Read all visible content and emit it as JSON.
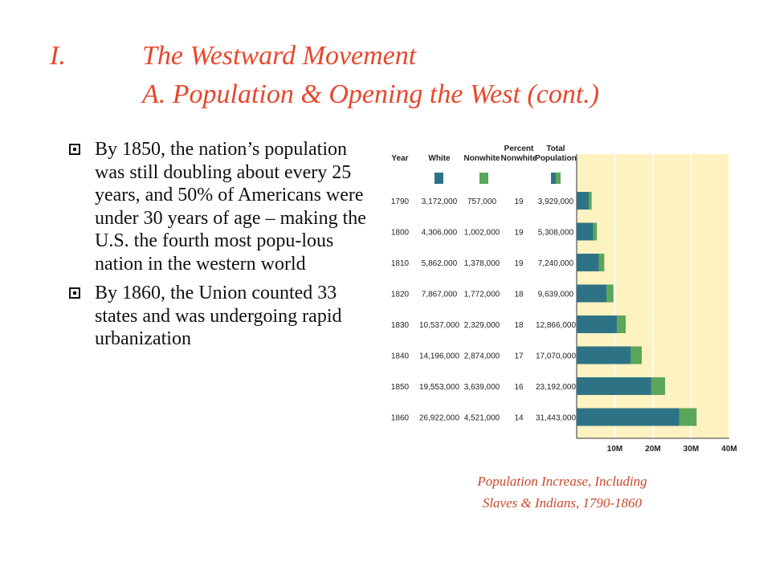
{
  "slide": {
    "title_number": "I.",
    "title_main": "The Westward Movement",
    "title_sub": "A.  Population & Opening the West (cont.)",
    "bullets": [
      "By 1850, the nation’s population was still doubling about every 25 years, and 50% of Americans were under 30 years of age – making the U.S. the fourth most popu-lous nation in the western world",
      "By 1860, the Union counted 33 states and was undergoing rapid urbanization"
    ],
    "caption_line1": "Population Increase, Including",
    "caption_line2": "Slaves & Indians, 1790-1860"
  },
  "chart_data": {
    "type": "bar",
    "stacked": true,
    "orientation": "horizontal",
    "columns": [
      "Year",
      "White",
      "Nonwhite",
      "Percent Nonwhite",
      "Total Population"
    ],
    "categories": [
      "1790",
      "1800",
      "1810",
      "1820",
      "1830",
      "1840",
      "1850",
      "1860"
    ],
    "table": [
      [
        "1790",
        "3,172,000",
        "757,000",
        "19",
        "3,929,000"
      ],
      [
        "1800",
        "4,306,000",
        "1,002,000",
        "19",
        "5,308,000"
      ],
      [
        "1810",
        "5,862,000",
        "1,378,000",
        "19",
        "7,240,000"
      ],
      [
        "1820",
        "7,867,000",
        "1,772,000",
        "18",
        "9,639,000"
      ],
      [
        "1830",
        "10,537,000",
        "2,329,000",
        "18",
        "12,866,000"
      ],
      [
        "1840",
        "14,196,000",
        "2,874,000",
        "17",
        "17,070,000"
      ],
      [
        "1850",
        "19,553,000",
        "3,639,000",
        "16",
        "23,192,000"
      ],
      [
        "1860",
        "26,922,000",
        "4,521,000",
        "14",
        "31,443,000"
      ]
    ],
    "series": [
      {
        "name": "White",
        "color": "#2e7385",
        "values": [
          3172000,
          4306000,
          5862000,
          7867000,
          10537000,
          14196000,
          19553000,
          26922000
        ]
      },
      {
        "name": "Nonwhite",
        "color": "#5aa65a",
        "values": [
          757000,
          1002000,
          1378000,
          1772000,
          2329000,
          2874000,
          3639000,
          4521000
        ]
      }
    ],
    "xticks": [
      "10M",
      "20M",
      "30M",
      "40M"
    ],
    "xlim": [
      0,
      40000000
    ],
    "grid": true,
    "background": "#fdf2c0"
  }
}
